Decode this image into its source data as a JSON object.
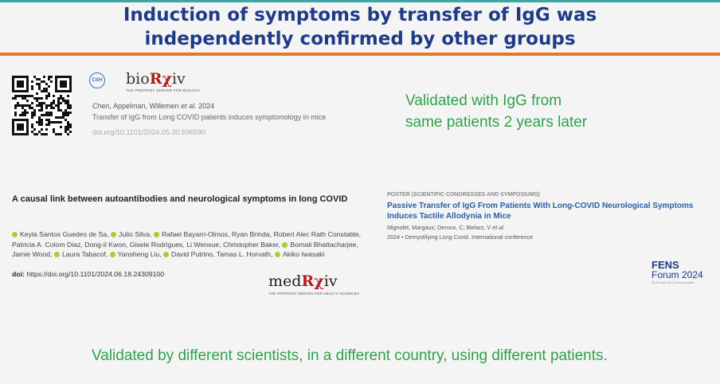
{
  "slide": {
    "title_line1": "Induction of symptoms by transfer of IgG was",
    "title_line2": "independently confirmed by other groups",
    "accent_colors": {
      "title": "#1f3b87",
      "bar": "#e87722",
      "highlight": "#2ea24a"
    }
  },
  "paper1": {
    "icon": "qr-code-icon",
    "publisher_logo": "bioRχiv",
    "publisher_tagline": "THE PREPRINT SERVER FOR BIOLOGY",
    "authors_prefix": "Chen, Appelman, Willemen",
    "authors_etal": "et al.",
    "year": "2024",
    "title": "Transfer of IgG from Long COVID patients induces symptomology in mice",
    "doi": "doi.org/10.1101/2024.05.30.596590"
  },
  "validated_same_patients": {
    "line1": "Validated with IgG from",
    "line2": "same patients 2 years later"
  },
  "paper2": {
    "title": "A causal link between autoantibodies and neurological symptoms in long COVID",
    "authors": [
      "Keyla Santos Guedes de Sa,",
      "Julio Silva,",
      "Rafael Bayarri-Olmos, Ryan Brinda,",
      "Robert Alec Rath Constable, Patricia A. Colom Diaz, Dong-il Kwon, Gisele Rodrigues, Li Wenxue,",
      "Christopher Baker,",
      "Bornali Bhattacharjee, Jamie Wood,",
      "Laura Tabacof,",
      "Yansheng Liu,",
      "David Putrino,",
      "Tamas L. Horvath,",
      "Akiko Iwasaki"
    ],
    "doi_label": "doi:",
    "doi": "https://doi.org/10.1101/2024.06.18.24309100",
    "publisher_logo": "medRχiv",
    "publisher_tagline": "THE PREPRINT SERVER FOR HEALTH SCIENCES"
  },
  "poster": {
    "category": "POSTER (SCIENTIFIC CONGRESSES AND SYMPOSIUMS)",
    "title": "Passive Transfer of IgG From Patients With Long-COVID Neurological Symptoms Induces Tactile Allodynia in Mice",
    "authors_prefix": "Mignolet, Margaux; Deroux, C; Bielarz, V",
    "authors_etal": "et al.",
    "conference": "2024 • Demystifying Long Covid. International conference",
    "fens_name": "FENS",
    "fens_forum": "Forum 2024",
    "fens_sub": "25–29 June 2024 | Vienna, Austria"
  },
  "footer": {
    "validated_text": "Validated by different scientists, in a different country, using different patients."
  }
}
